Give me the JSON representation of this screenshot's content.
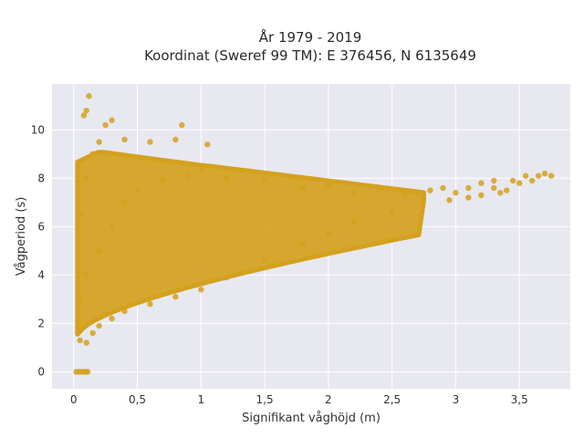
{
  "chart_data": {
    "type": "scatter",
    "title": "År 1979 - 2019",
    "subtitle": "Koordinat (Sweref 99 TM): E 376456, N 6135649",
    "xlabel": "Signifikant våghöjd (m)",
    "ylabel": "Vågperiod (s)",
    "xlim": [
      -0.17,
      3.9
    ],
    "ylim": [
      -0.7,
      11.9
    ],
    "x_ticks": [
      0,
      0.5,
      1,
      1.5,
      2,
      2.5,
      3,
      3.5
    ],
    "x_tick_labels": [
      "0",
      "0,5",
      "1",
      "1,5",
      "2",
      "2,5",
      "3",
      "3,5"
    ],
    "y_ticks": [
      0,
      2,
      4,
      6,
      8,
      10
    ],
    "y_tick_labels": [
      "0",
      "2",
      "4",
      "6",
      "8",
      "10"
    ],
    "grid": true,
    "colors": {
      "marker": "#D4A11E",
      "plot_bg": "#E8E8F0",
      "grid": "#FFFFFF"
    },
    "series": [
      {
        "marker_color": "#D4A11E",
        "points": [
          [
            0.02,
            0
          ],
          [
            0.04,
            0
          ],
          [
            0.06,
            0
          ],
          [
            0.08,
            0
          ],
          [
            0.1,
            0
          ],
          [
            0.11,
            0
          ],
          [
            0.05,
            1.3
          ],
          [
            0.1,
            1.2
          ],
          [
            0.15,
            1.6
          ],
          [
            0.2,
            1.9
          ],
          [
            0.3,
            2.2
          ],
          [
            0.4,
            2.5
          ],
          [
            0.6,
            2.8
          ],
          [
            0.8,
            3.1
          ],
          [
            1.0,
            3.4
          ],
          [
            1.2,
            3.9
          ],
          [
            1.5,
            4.6
          ],
          [
            1.8,
            5.3
          ],
          [
            2.0,
            5.7
          ],
          [
            2.2,
            6.2
          ],
          [
            2.5,
            6.6
          ],
          [
            0.05,
            3.0
          ],
          [
            0.1,
            4.0
          ],
          [
            0.2,
            5.0
          ],
          [
            0.3,
            6.0
          ],
          [
            0.4,
            7.0
          ],
          [
            0.5,
            7.5
          ],
          [
            0.7,
            7.9
          ],
          [
            0.9,
            8.1
          ],
          [
            1.0,
            8.4
          ],
          [
            1.2,
            8.0
          ],
          [
            1.5,
            7.9
          ],
          [
            1.8,
            7.6
          ],
          [
            2.0,
            7.7
          ],
          [
            2.2,
            7.4
          ],
          [
            2.4,
            7.5
          ],
          [
            2.6,
            7.3
          ],
          [
            0.05,
            6.5
          ],
          [
            0.1,
            8.0
          ],
          [
            0.15,
            9.0
          ],
          [
            0.2,
            9.5
          ],
          [
            0.25,
            10.2
          ],
          [
            0.3,
            10.4
          ],
          [
            0.1,
            10.8
          ],
          [
            0.12,
            11.4
          ],
          [
            0.08,
            10.6
          ],
          [
            0.4,
            9.6
          ],
          [
            0.6,
            9.5
          ],
          [
            0.8,
            9.6
          ],
          [
            1.05,
            9.4
          ],
          [
            0.85,
            10.2
          ],
          [
            2.7,
            7.4
          ],
          [
            2.8,
            7.5
          ],
          [
            2.9,
            7.6
          ],
          [
            3.0,
            7.4
          ],
          [
            3.1,
            7.6
          ],
          [
            3.2,
            7.8
          ],
          [
            3.3,
            7.6
          ],
          [
            3.35,
            7.4
          ],
          [
            3.4,
            7.5
          ],
          [
            3.45,
            7.9
          ],
          [
            3.5,
            7.8
          ],
          [
            3.55,
            8.1
          ],
          [
            3.6,
            7.9
          ],
          [
            3.65,
            8.1
          ],
          [
            3.7,
            8.2
          ],
          [
            3.75,
            8.1
          ],
          [
            3.2,
            7.3
          ],
          [
            3.3,
            7.9
          ],
          [
            2.95,
            7.1
          ],
          [
            3.1,
            7.2
          ]
        ]
      }
    ]
  }
}
